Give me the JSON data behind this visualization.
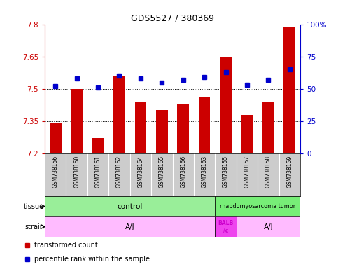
{
  "title": "GDS5527 / 380369",
  "samples": [
    "GSM738156",
    "GSM738160",
    "GSM738161",
    "GSM738162",
    "GSM738164",
    "GSM738165",
    "GSM738166",
    "GSM738163",
    "GSM738155",
    "GSM738157",
    "GSM738158",
    "GSM738159"
  ],
  "bar_values": [
    7.34,
    7.5,
    7.27,
    7.56,
    7.44,
    7.4,
    7.43,
    7.46,
    7.65,
    7.38,
    7.44,
    7.79
  ],
  "dot_values": [
    52,
    58,
    51,
    60,
    58,
    55,
    57,
    59,
    63,
    53,
    57,
    65
  ],
  "ylim_left": [
    7.2,
    7.8
  ],
  "ylim_right": [
    0,
    100
  ],
  "yticks_left": [
    7.2,
    7.35,
    7.5,
    7.65,
    7.8
  ],
  "yticks_right": [
    0,
    25,
    50,
    75,
    100
  ],
  "ytick_labels_left": [
    "7.2",
    "7.35",
    "7.5",
    "7.65",
    "7.8"
  ],
  "ytick_labels_right": [
    "0",
    "25",
    "50",
    "75",
    "100%"
  ],
  "hlines": [
    7.35,
    7.5,
    7.65
  ],
  "bar_color": "#cc0000",
  "dot_color": "#0000cc",
  "bar_bottom": 7.2,
  "bar_width": 0.55,
  "control_color": "#99ee99",
  "tumor_color": "#77ee77",
  "strain_aj_color": "#ffbbff",
  "strain_balb_color": "#ee44ee",
  "xtick_bg_color": "#cccccc",
  "bg_color": "#ffffff",
  "left_tick_color": "#cc0000",
  "right_tick_color": "#0000cc",
  "legend_items": [
    {
      "label": "transformed count",
      "color": "#cc0000"
    },
    {
      "label": "percentile rank within the sample",
      "color": "#0000cc"
    }
  ]
}
